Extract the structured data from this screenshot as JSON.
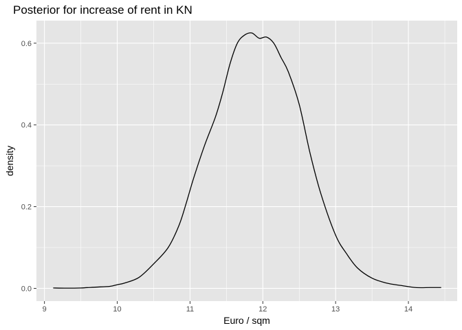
{
  "chart_data": {
    "type": "line",
    "title": "Posterior for increase of rent in KN",
    "xlabel": "Euro / sqm",
    "ylabel": "density",
    "xlim": [
      8.89,
      14.67
    ],
    "ylim": [
      -0.0312,
      0.6552
    ],
    "x_ticks": [
      9,
      10,
      11,
      12,
      13,
      14
    ],
    "x_tick_labels": [
      "9",
      "10",
      "11",
      "12",
      "13",
      "14"
    ],
    "y_ticks": [
      0.0,
      0.2,
      0.4,
      0.6
    ],
    "y_tick_labels": [
      "0.0",
      "0.2",
      "0.4",
      "0.6"
    ],
    "grid": true,
    "legend": "none",
    "colors": {
      "panel": "#e5e5e5",
      "grid": "#ffffff",
      "line": "#000000"
    },
    "series": [
      {
        "x": [
          9.12,
          9.3,
          9.5,
          9.7,
          9.9,
          10.0,
          10.1,
          10.3,
          10.5,
          10.7,
          10.85,
          10.95,
          11.05,
          11.2,
          11.35,
          11.45,
          11.55,
          11.65,
          11.75,
          11.85,
          11.95,
          12.05,
          12.15,
          12.25,
          12.35,
          12.5,
          12.65,
          12.8,
          13.0,
          13.15,
          13.3,
          13.5,
          13.7,
          13.9,
          14.1,
          14.3,
          14.45
        ],
        "values": [
          0.001,
          0.0005,
          0.001,
          0.003,
          0.005,
          0.009,
          0.013,
          0.027,
          0.06,
          0.1,
          0.155,
          0.21,
          0.27,
          0.35,
          0.42,
          0.48,
          0.55,
          0.6,
          0.62,
          0.625,
          0.612,
          0.615,
          0.6,
          0.565,
          0.53,
          0.45,
          0.33,
          0.23,
          0.13,
          0.085,
          0.05,
          0.025,
          0.013,
          0.007,
          0.002,
          0.002,
          0.002
        ]
      }
    ]
  }
}
